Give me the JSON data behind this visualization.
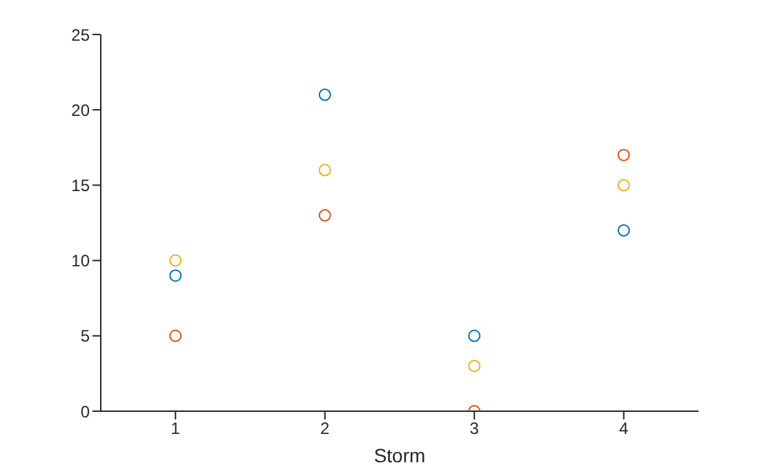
{
  "chart_data": {
    "type": "scatter",
    "xlabel": "Storm",
    "x": [
      1,
      2,
      3,
      4
    ],
    "xlim": [
      0.5,
      4.5
    ],
    "xticks": [
      1,
      2,
      3,
      4
    ],
    "ylim": [
      0,
      25
    ],
    "yticks": [
      0,
      5,
      10,
      15,
      20,
      25
    ],
    "marker": "circle",
    "grid": false,
    "legend": false,
    "series": [
      {
        "color": "#0072bd",
        "values": [
          9,
          21,
          5,
          12
        ]
      },
      {
        "color": "#d95319",
        "values": [
          5,
          13,
          0,
          17
        ]
      },
      {
        "color": "#edb120",
        "values": [
          10,
          16,
          3,
          15
        ]
      }
    ]
  }
}
